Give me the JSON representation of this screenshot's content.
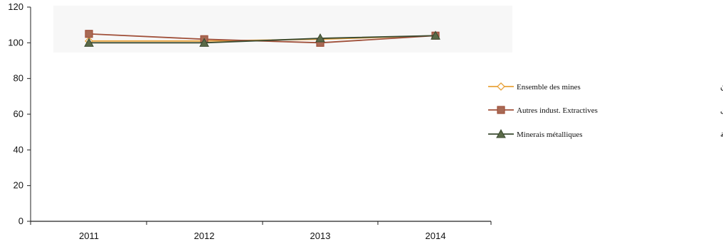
{
  "chart_data": {
    "type": "line",
    "categories": [
      "2011",
      "2012",
      "2013",
      "2014"
    ],
    "ylim": [
      0,
      120
    ],
    "yticks": [
      0,
      20,
      40,
      60,
      80,
      100,
      120
    ],
    "grid": false,
    "legend_position": "right",
    "series": [
      {
        "name": "Ensemble des mines",
        "name_ar": "مجموع المعادن",
        "values": [
          101,
          101,
          102,
          104
        ],
        "color": "#e8a23a",
        "marker": "diamond"
      },
      {
        "name": "Autres indust. Extractives",
        "name_ar": "صناعات استخراجية أخرى",
        "values": [
          105,
          102,
          100,
          104
        ],
        "color": "#a0503a",
        "marker": "square"
      },
      {
        "name": "Minerais métalliques",
        "name_ar": "معادن حديدية",
        "values": [
          100,
          100,
          102.5,
          104
        ],
        "color": "#3a4a30",
        "marker": "triangle"
      }
    ]
  }
}
